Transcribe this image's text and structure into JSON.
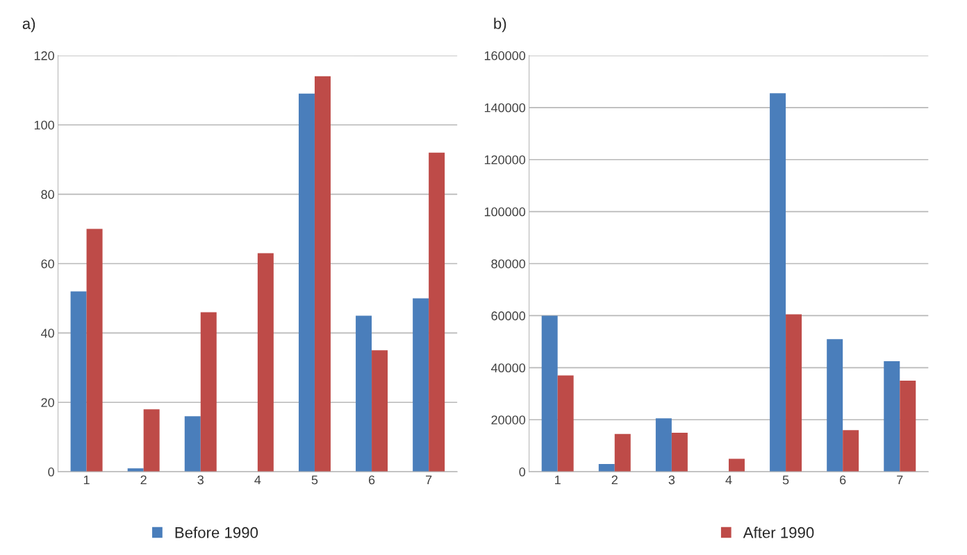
{
  "chart_data": [
    {
      "type": "bar",
      "title": "a)",
      "categories": [
        "1",
        "2",
        "3",
        "4",
        "5",
        "6",
        "7"
      ],
      "series": [
        {
          "name": "Before 1990",
          "color": "#4a7ebb",
          "values": [
            52,
            1,
            16,
            null,
            109,
            45,
            50
          ]
        },
        {
          "name": "After 1990",
          "color": "#be4b48",
          "values": [
            70,
            18,
            46,
            63,
            114,
            35,
            92
          ]
        }
      ],
      "ylim": [
        0,
        120
      ],
      "yticks": [
        0,
        20,
        40,
        60,
        80,
        100,
        120
      ],
      "grid": "y",
      "legend": "bottom"
    },
    {
      "type": "bar",
      "title": "b)",
      "categories": [
        "1",
        "2",
        "3",
        "4",
        "5",
        "6",
        "7"
      ],
      "series": [
        {
          "color": "#4a7ebb",
          "values": [
            60000,
            3000,
            20500,
            null,
            145500,
            51000,
            42500
          ]
        },
        {
          "color": "#be4b48",
          "values": [
            37000,
            14500,
            15000,
            5000,
            60500,
            16000,
            35000
          ]
        }
      ],
      "ylim": [
        0,
        160000
      ],
      "yticks": [
        0,
        20000,
        40000,
        60000,
        80000,
        100000,
        120000,
        140000,
        160000
      ],
      "grid": "y"
    }
  ]
}
